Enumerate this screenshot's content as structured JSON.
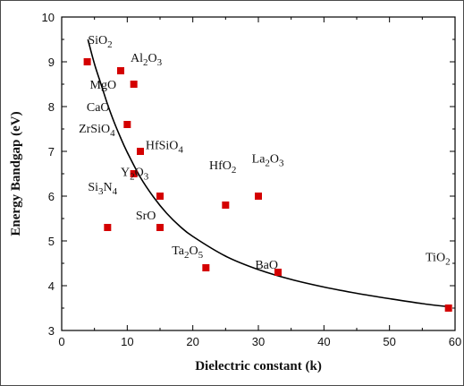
{
  "chart_data": {
    "type": "scatter",
    "title": "",
    "xlabel": "Dielectric constant (k)",
    "ylabel": "Energy Bandgap (eV)",
    "xlim": [
      0,
      60
    ],
    "ylim": [
      3,
      10
    ],
    "x_ticks": [
      "0",
      "10",
      "20",
      "30",
      "40",
      "50",
      "60"
    ],
    "y_ticks": [
      "3",
      "4",
      "5",
      "6",
      "7",
      "8",
      "9",
      "10"
    ],
    "grid": false,
    "legend": "none",
    "marker_color": "#d40000",
    "curve_color": "#000000",
    "points": [
      {
        "x": 3.9,
        "y": 9.0
      },
      {
        "x": 9.0,
        "y": 8.8
      },
      {
        "x": 11.0,
        "y": 8.5
      },
      {
        "x": 10.0,
        "y": 7.6
      },
      {
        "x": 12.0,
        "y": 7.0
      },
      {
        "x": 11.0,
        "y": 6.5
      },
      {
        "x": 7.0,
        "y": 5.3
      },
      {
        "x": 15.0,
        "y": 6.0
      },
      {
        "x": 15.0,
        "y": 5.3
      },
      {
        "x": 25.0,
        "y": 5.8
      },
      {
        "x": 30.0,
        "y": 6.0
      },
      {
        "x": 22.0,
        "y": 4.4
      },
      {
        "x": 33.0,
        "y": 4.3
      },
      {
        "x": 59.0,
        "y": 3.5
      }
    ],
    "trend_curve": {
      "x": [
        4.0,
        5.0,
        6.0,
        7.0,
        8.0,
        9.0,
        10.0,
        12.0,
        14.0,
        16.0,
        18.0,
        20.0,
        25.0,
        30.0,
        35.0,
        40.0,
        45.0,
        50.0,
        55.0,
        59.0
      ],
      "y": [
        9.5,
        8.95,
        8.5,
        8.05,
        7.65,
        7.3,
        6.98,
        6.42,
        5.98,
        5.62,
        5.33,
        5.1,
        4.66,
        4.36,
        4.14,
        3.97,
        3.83,
        3.71,
        3.6,
        3.53
      ]
    },
    "annotations": [
      {
        "parts": [
          {
            "t": "SiO"
          },
          {
            "t": "2",
            "sub": true
          }
        ],
        "x": 4.0,
        "y": 9.4
      },
      {
        "parts": [
          {
            "t": "Al"
          },
          {
            "t": "2",
            "sub": true
          },
          {
            "t": "O"
          },
          {
            "t": "3",
            "sub": true
          }
        ],
        "x": 10.5,
        "y": 9.0
      },
      {
        "parts": [
          {
            "t": "MgO"
          }
        ],
        "x": 4.3,
        "y": 8.4
      },
      {
        "parts": [
          {
            "t": "CaO"
          }
        ],
        "x": 3.8,
        "y": 7.9
      },
      {
        "parts": [
          {
            "t": "ZrSiO"
          },
          {
            "t": "4",
            "sub": true
          }
        ],
        "x": 2.6,
        "y": 7.42
      },
      {
        "parts": [
          {
            "t": "HfSiO"
          },
          {
            "t": "4",
            "sub": true
          }
        ],
        "x": 12.8,
        "y": 7.05
      },
      {
        "parts": [
          {
            "t": "Y"
          },
          {
            "t": "2",
            "sub": true
          },
          {
            "t": "O"
          },
          {
            "t": "3",
            "sub": true
          }
        ],
        "x": 9.0,
        "y": 6.45
      },
      {
        "parts": [
          {
            "t": "HfO"
          },
          {
            "t": "2",
            "sub": true
          }
        ],
        "x": 22.5,
        "y": 6.6
      },
      {
        "parts": [
          {
            "t": "La"
          },
          {
            "t": "2",
            "sub": true
          },
          {
            "t": "O"
          },
          {
            "t": "3",
            "sub": true
          }
        ],
        "x": 29.0,
        "y": 6.75
      },
      {
        "parts": [
          {
            "t": "Si"
          },
          {
            "t": "3",
            "sub": true
          },
          {
            "t": "N"
          },
          {
            "t": "4",
            "sub": true
          }
        ],
        "x": 4.0,
        "y": 6.12
      },
      {
        "parts": [
          {
            "t": "SrO"
          }
        ],
        "x": 11.3,
        "y": 5.48
      },
      {
        "parts": [
          {
            "t": "Ta"
          },
          {
            "t": "2",
            "sub": true
          },
          {
            "t": "O"
          },
          {
            "t": "5",
            "sub": true
          }
        ],
        "x": 16.8,
        "y": 4.7
      },
      {
        "parts": [
          {
            "t": "BaO"
          }
        ],
        "x": 29.5,
        "y": 4.38
      },
      {
        "parts": [
          {
            "t": "TiO"
          },
          {
            "t": "2",
            "sub": true
          }
        ],
        "x": 55.5,
        "y": 4.55
      }
    ]
  }
}
